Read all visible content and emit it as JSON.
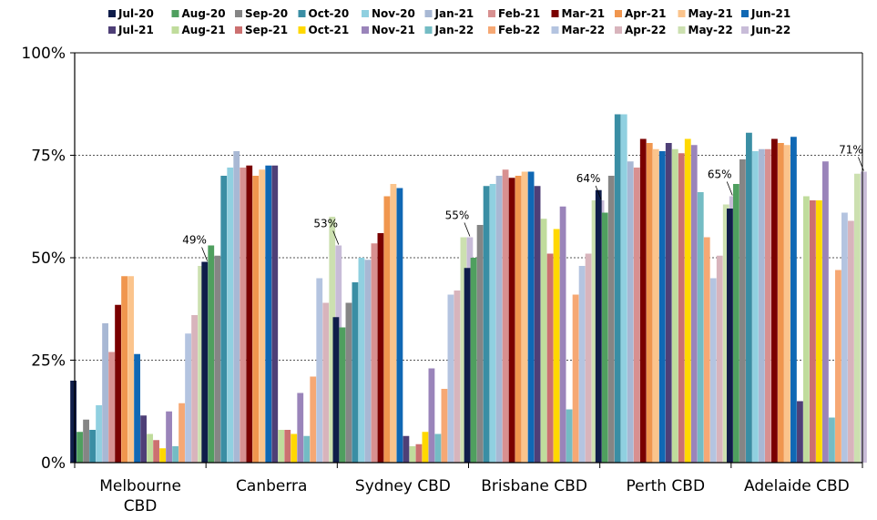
{
  "chart_data": {
    "type": "bar",
    "title": "",
    "xlabel": "",
    "ylabel": "",
    "ylim": [
      0,
      100
    ],
    "yticks": [
      0,
      25,
      50,
      75,
      100
    ],
    "ytick_labels": [
      "0%",
      "25%",
      "50%",
      "75%",
      "100%"
    ],
    "grid": "horizontal dotted at 50% and 75%",
    "legend_position": "top",
    "categories": [
      "Melbourne CBD",
      "Canberra",
      "Sydney CBD",
      "Brisbane CBD",
      "Perth CBD",
      "Adelaide CBD"
    ],
    "series": [
      {
        "name": "Jul-20",
        "color": "#0f1d4a",
        "values": [
          20,
          49,
          35.5,
          47.5,
          66.5,
          62
        ]
      },
      {
        "name": "Aug-20",
        "color": "#4f9f5f",
        "values": [
          7.5,
          53,
          33,
          50,
          61,
          68
        ]
      },
      {
        "name": "Sep-20",
        "color": "#858585",
        "values": [
          10.5,
          50.5,
          39,
          58,
          70,
          74
        ]
      },
      {
        "name": "Oct-20",
        "color": "#3a8ea4",
        "values": [
          8,
          70,
          44,
          67.5,
          85,
          80.5
        ]
      },
      {
        "name": "Nov-20",
        "color": "#90d0e0",
        "values": [
          14,
          72,
          50,
          68,
          85,
          76
        ]
      },
      {
        "name": "Jan-21",
        "color": "#a8b8d4",
        "values": [
          34,
          76,
          49.5,
          70,
          73.5,
          76.5
        ]
      },
      {
        "name": "Feb-21",
        "color": "#d89090",
        "values": [
          27,
          72,
          53.5,
          71.5,
          72,
          76.5
        ]
      },
      {
        "name": "Mar-21",
        "color": "#7a0000",
        "values": [
          38.5,
          72.5,
          56,
          69.5,
          79,
          79
        ]
      },
      {
        "name": "Apr-21",
        "color": "#f0964e",
        "values": [
          45.5,
          70,
          65,
          70,
          78,
          78
        ]
      },
      {
        "name": "May-21",
        "color": "#fbc48c",
        "values": [
          45.5,
          71.5,
          68,
          71,
          76.5,
          77.5
        ]
      },
      {
        "name": "Jun-21",
        "color": "#1068b4",
        "values": [
          26.5,
          72.5,
          67,
          71,
          76,
          79.5
        ]
      },
      {
        "name": "Jul-21",
        "color": "#4e3f77",
        "values": [
          11.5,
          72.5,
          6.5,
          67.5,
          78,
          15
        ]
      },
      {
        "name": "Aug-21",
        "color": "#c0dc9c",
        "values": [
          7,
          8,
          4,
          59.5,
          76.5,
          65
        ]
      },
      {
        "name": "Sep-21",
        "color": "#cc7070",
        "values": [
          5.5,
          8,
          4.5,
          51,
          75.5,
          64
        ]
      },
      {
        "name": "Oct-21",
        "color": "#ffd800",
        "values": [
          3.5,
          7,
          7.5,
          57,
          79,
          64
        ]
      },
      {
        "name": "Nov-21",
        "color": "#9a84ba",
        "values": [
          12.5,
          17,
          23,
          62.5,
          77.5,
          73.5
        ]
      },
      {
        "name": "Jan-22",
        "color": "#74bcc4",
        "values": [
          4,
          6.5,
          7,
          13,
          66,
          11
        ]
      },
      {
        "name": "Feb-22",
        "color": "#f6a874",
        "values": [
          14.5,
          21,
          18,
          41,
          55,
          47
        ]
      },
      {
        "name": "Mar-22",
        "color": "#b4c4e0",
        "values": [
          31.5,
          45,
          41,
          48,
          45,
          61
        ]
      },
      {
        "name": "Apr-22",
        "color": "#d8b4bc",
        "values": [
          36,
          39,
          42,
          51,
          50.5,
          59
        ]
      },
      {
        "name": "May-22",
        "color": "#cce0b0",
        "values": [
          48,
          60,
          55,
          64,
          63,
          70.5
        ]
      },
      {
        "name": "Jun-22",
        "color": "#c8bcd8",
        "values": [
          49,
          53,
          55,
          64,
          65,
          71
        ]
      }
    ],
    "annotations": [
      "49%",
      "53%",
      "55%",
      "64%",
      "65%",
      "71%"
    ]
  }
}
